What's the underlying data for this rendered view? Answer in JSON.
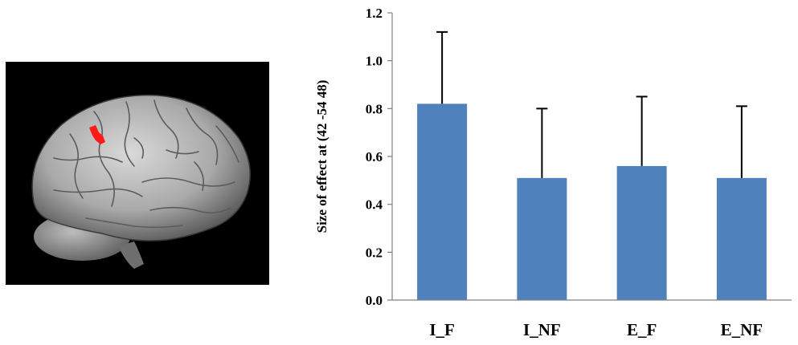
{
  "figure": {
    "brain_panel": {
      "icon": "brain-render-lateral-view",
      "background": "#000000",
      "highlight_color": "#ff1a1a"
    }
  },
  "chart_data": {
    "type": "bar",
    "categories": [
      "I_F",
      "I_NF",
      "E_F",
      "E_NF"
    ],
    "values": [
      0.82,
      0.51,
      0.56,
      0.51
    ],
    "error_bars_upper": [
      0.3,
      0.29,
      0.29,
      0.3
    ],
    "ylabel": "Size of effect at (42 -54 48)",
    "xlabel": "",
    "ylim": [
      0.0,
      1.2
    ],
    "yticks": [
      "0.0",
      "0.2",
      "0.4",
      "0.6",
      "0.8",
      "1.0",
      "1.2"
    ],
    "bar_color": "#4f81bd",
    "grid": false,
    "legend": "none"
  }
}
